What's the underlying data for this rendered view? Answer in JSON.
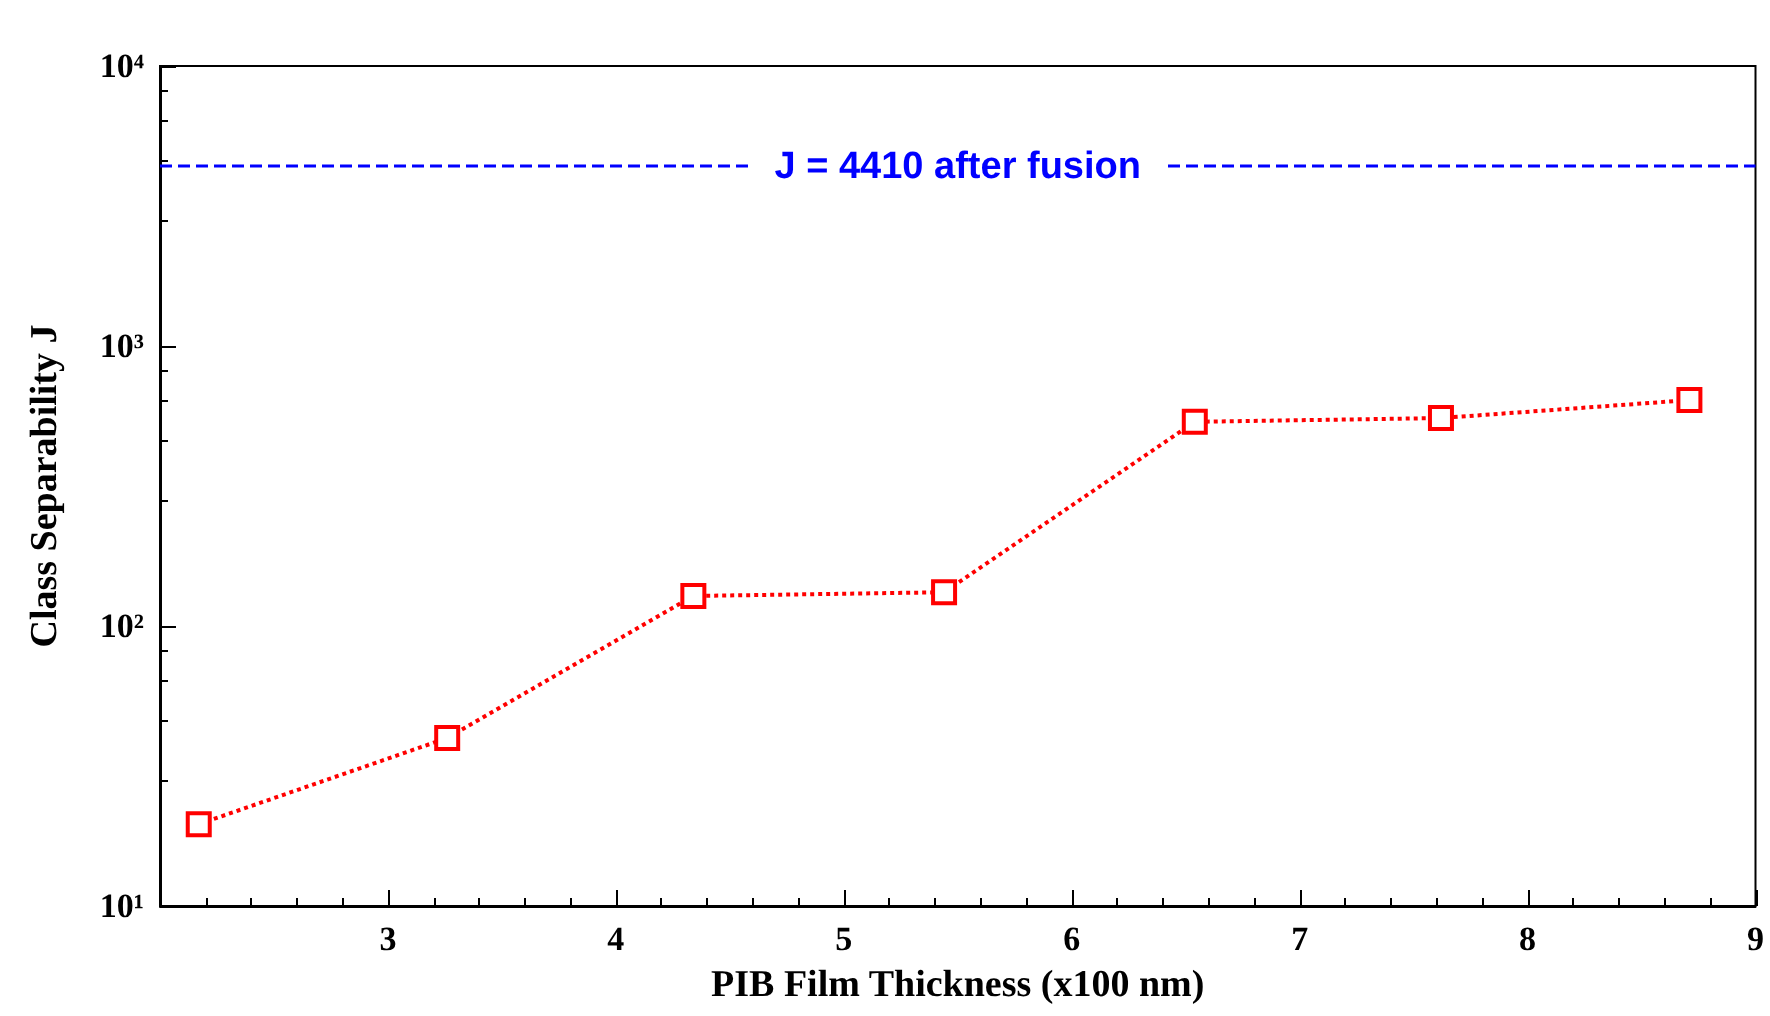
{
  "chart_data": {
    "type": "line",
    "xlabel": "PIB Film Thickness (x100 nm)",
    "ylabel": "Class Separability J",
    "x": [
      2.17,
      3.26,
      4.34,
      5.44,
      6.54,
      7.62,
      8.71
    ],
    "series": [
      {
        "color": "#ff0000",
        "values": [
          19.6,
          39.8,
          128,
          132,
          536,
          553,
          641
        ]
      }
    ],
    "xlim": [
      2,
      9
    ],
    "xticks": [
      3,
      4,
      5,
      6,
      7,
      8,
      9
    ],
    "ylim": [
      10,
      10000
    ],
    "yticks": [
      {
        "value": 10,
        "label": "10¹"
      },
      {
        "value": 100,
        "label": "10²"
      },
      {
        "value": 1000,
        "label": "10³"
      },
      {
        "value": 10000,
        "label": "10⁴"
      }
    ],
    "log": "y",
    "grid": false,
    "marker": "square",
    "line_style": "dotted",
    "ref_lines": [
      {
        "axis": "y",
        "value": 4410,
        "label": "J = 4410 after fusion",
        "color": "#0000ff",
        "line_style": "dashed"
      }
    ]
  }
}
